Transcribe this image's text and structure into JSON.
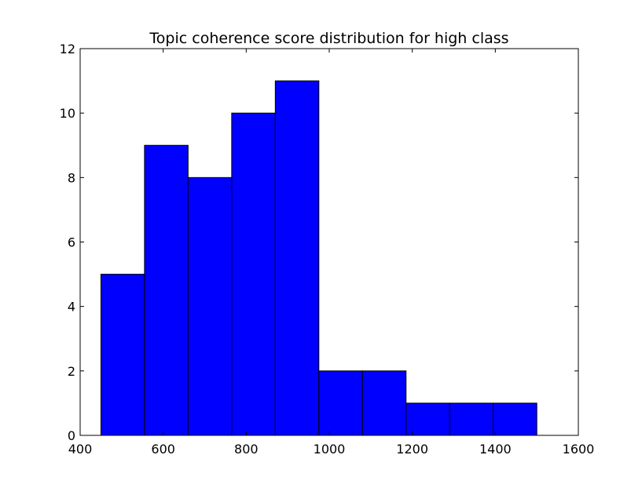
{
  "chart_data": {
    "type": "bar",
    "title": "Topic coherence score distribution for high class",
    "xlabel": "",
    "ylabel": "",
    "xlim": [
      400,
      1600
    ],
    "ylim": [
      0,
      12
    ],
    "xticks": [
      400,
      600,
      800,
      1000,
      1200,
      1400,
      1600
    ],
    "yticks": [
      0,
      2,
      4,
      6,
      8,
      10,
      12
    ],
    "bin_edges": [
      450,
      555,
      660,
      765,
      870,
      975,
      1080,
      1185,
      1290,
      1395,
      1500
    ],
    "values": [
      5,
      9,
      8,
      10,
      11,
      2,
      2,
      1,
      1,
      1
    ],
    "bar_color": "#0000ff",
    "edge_color": "#000000",
    "grid": false
  }
}
